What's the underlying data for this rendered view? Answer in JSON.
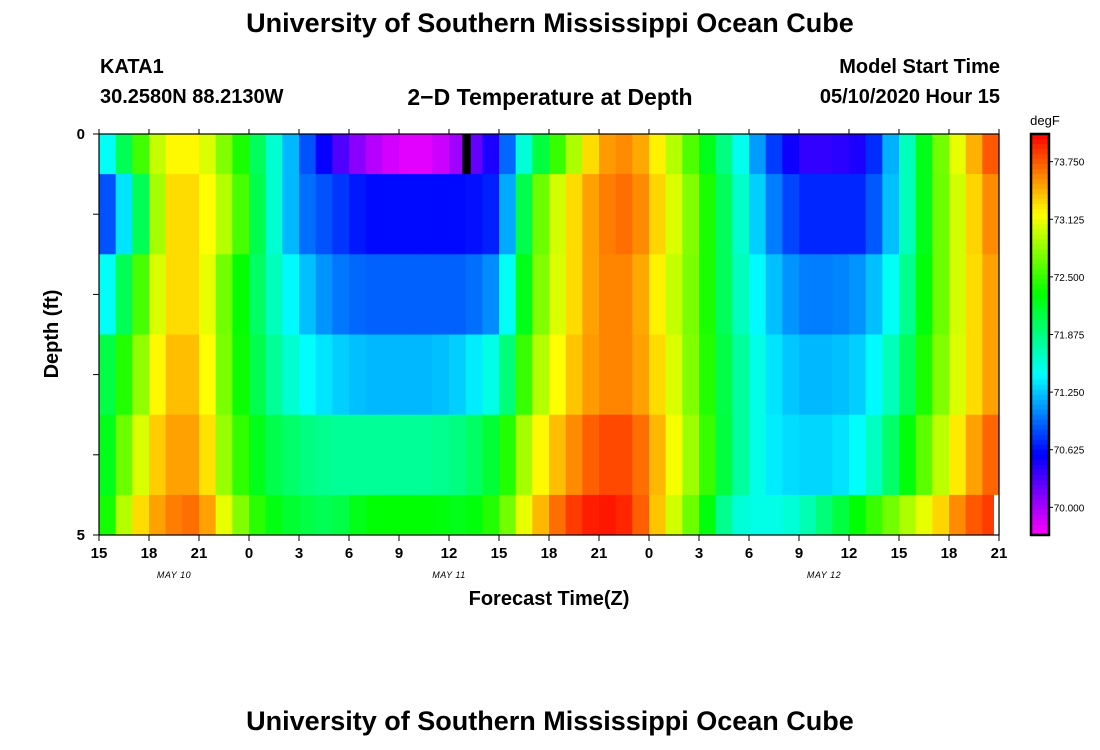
{
  "header": {
    "title": "University of Southern Mississippi Ocean Cube",
    "station": "KATA1",
    "coords": "30.2580N 88.2130W",
    "subtitle": "2−D Temperature at Depth",
    "start_label": "Model Start Time",
    "start_value": "05/10/2020 Hour 15"
  },
  "footer": {
    "title": "University of Southern Mississippi Ocean Cube"
  },
  "chart_data": {
    "type": "heatmap",
    "title": "2−D Temperature at Depth",
    "xlabel": "Forecast Time(Z)",
    "ylabel": "Depth (ft)",
    "colorbar_unit": "degF",
    "colorbar_ticks": [
      "73.750",
      "73.125",
      "72.500",
      "71.875",
      "71.250",
      "70.625",
      "70.000"
    ],
    "colorbar_values": [
      73.75,
      73.125,
      72.5,
      71.875,
      71.25,
      70.625,
      70.0
    ],
    "vmin": 69.7,
    "vmax": 74.05,
    "x_tick_labels": [
      "15",
      "18",
      "21",
      "0",
      "3",
      "6",
      "9",
      "12",
      "15",
      "18",
      "21",
      "0",
      "3",
      "6",
      "9",
      "12",
      "15",
      "18",
      "21"
    ],
    "date_labels": [
      {
        "text": "MAY 10",
        "hour_offset": 4.5
      },
      {
        "text": "MAY 11",
        "hour_offset": 21
      },
      {
        "text": "MAY 12",
        "hour_offset": 43.5
      }
    ],
    "x_range_hours": [
      0,
      54
    ],
    "y_tick_labels": [
      "0",
      "5"
    ],
    "y_range_ft": [
      0,
      5
    ],
    "depth_layers_ft": [
      [
        0,
        0.5
      ],
      [
        0.5,
        1.5
      ],
      [
        1.5,
        2.5
      ],
      [
        2.5,
        3.5
      ],
      [
        3.5,
        4.5
      ],
      [
        4.5,
        5
      ]
    ],
    "row_curves": [
      {
        "depth_ft": 0.25,
        "temps": [
          71.2,
          72.3,
          73.2,
          73.2,
          72.6,
          71.8,
          71.0,
          70.4,
          70.0,
          69.8,
          69.8,
          70.1,
          70.6,
          71.9,
          72.7,
          73.5,
          73.6,
          73.1,
          72.4,
          71.7,
          70.9,
          70.4,
          70.4,
          70.5,
          71.4,
          72.5,
          73.3,
          73.9
        ]
      },
      {
        "depth_ft": 1.0,
        "temps": [
          70.6,
          71.6,
          73.3,
          73.3,
          72.8,
          71.8,
          71.0,
          70.8,
          70.6,
          70.6,
          70.6,
          70.6,
          70.7,
          72.5,
          73.2,
          73.6,
          73.7,
          73.2,
          72.6,
          71.8,
          71.1,
          70.7,
          70.7,
          70.7,
          71.4,
          72.5,
          73.2,
          73.7
        ]
      },
      {
        "depth_ft": 2.0,
        "temps": [
          71.2,
          72.3,
          73.3,
          73.3,
          72.5,
          71.8,
          71.3,
          71.0,
          70.9,
          70.9,
          70.9,
          70.9,
          71.1,
          72.6,
          73.2,
          73.6,
          73.6,
          73.1,
          72.6,
          71.8,
          71.3,
          71.0,
          71.0,
          71.1,
          71.6,
          72.5,
          73.2,
          73.6
        ]
      },
      {
        "depth_ft": 3.0,
        "temps": [
          71.9,
          72.6,
          73.4,
          73.4,
          72.5,
          71.9,
          71.5,
          71.3,
          71.2,
          71.2,
          71.2,
          71.3,
          71.6,
          72.8,
          73.3,
          73.6,
          73.6,
          73.2,
          72.6,
          71.9,
          71.4,
          71.2,
          71.2,
          71.3,
          71.8,
          72.6,
          73.2,
          73.6
        ]
      },
      {
        "depth_ft": 4.0,
        "temps": [
          72.0,
          72.9,
          73.5,
          73.5,
          72.6,
          72.1,
          71.9,
          71.8,
          71.8,
          71.8,
          71.8,
          71.9,
          72.2,
          73.1,
          73.5,
          73.8,
          73.8,
          73.3,
          72.7,
          71.9,
          71.4,
          71.3,
          71.3,
          71.5,
          72.1,
          72.8,
          73.4,
          73.8
        ]
      },
      {
        "depth_ft": 4.75,
        "temps": [
          72.1,
          73.2,
          73.6,
          73.7,
          72.9,
          72.3,
          72.1,
          72.0,
          72.3,
          72.3,
          72.3,
          72.2,
          72.5,
          73.3,
          73.8,
          74.0,
          73.9,
          73.2,
          72.5,
          71.6,
          71.5,
          71.6,
          72.0,
          72.4,
          72.8,
          73.2,
          73.7,
          73.9
        ]
      }
    ],
    "missing_cells": [
      {
        "row": 0,
        "hour_start": 21.8,
        "hour_end": 22.3,
        "color": "#000000"
      },
      {
        "row": 5,
        "hour_start": 53.7,
        "hour_end": 54.0,
        "color": "#ffffff"
      }
    ]
  }
}
